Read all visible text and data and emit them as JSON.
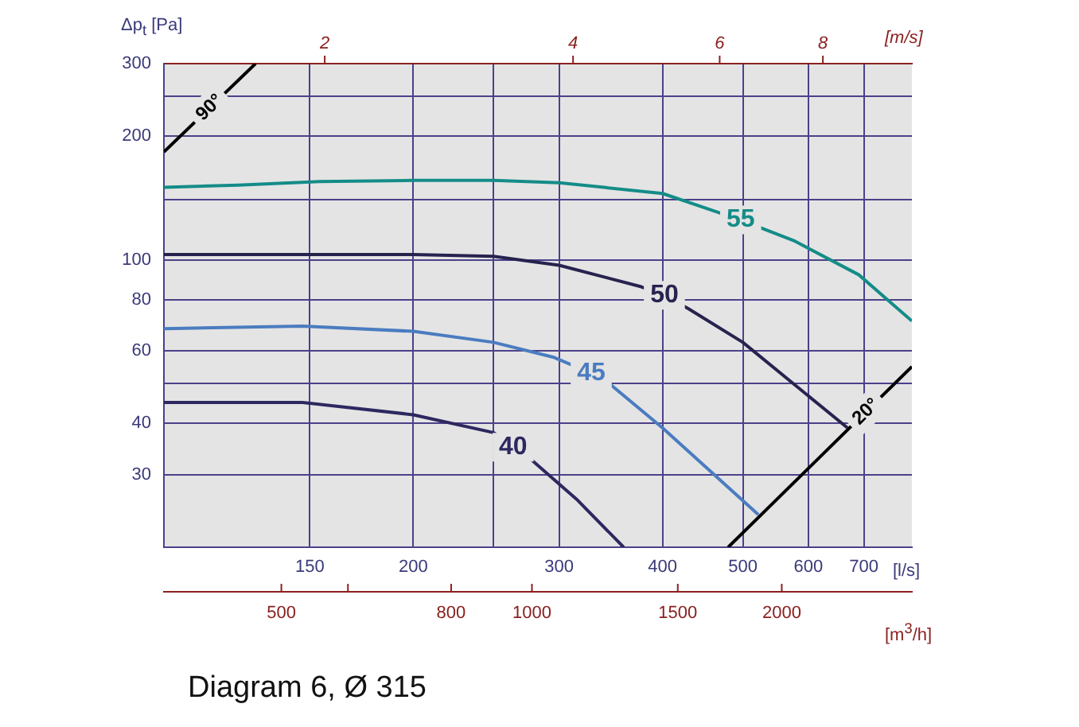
{
  "chart_data": {
    "type": "line",
    "log": "xy",
    "grid": true,
    "xlabel": "[l/s]",
    "ylabel": "Δp$_{t}$ [Pa]",
    "annotations": [
      "Diagram 6, Ø 315",
      "2",
      "4",
      "6",
      "8",
      "[m/s]",
      "500",
      "800",
      "1000",
      "1500",
      "2000",
      "[m$^{3}$/h]"
    ],
    "xlim": [
      100,
      800
    ],
    "xticks": [
      150,
      200,
      {
        "value": 250,
        "label": null
      },
      300,
      400,
      500,
      600,
      700
    ],
    "ylim": [
      20,
      300
    ],
    "yticks": [
      30,
      40,
      {
        "value": 50,
        "label": null
      },
      60,
      80,
      100,
      {
        "value": 140,
        "label": null
      },
      200,
      {
        "value": 250,
        "label": null
      },
      300
    ],
    "series": [
      {
        "name": "40",
        "color": "#2d2860",
        "x": [
          100,
          147,
          200,
          250,
          264,
          276,
          316,
          359
        ],
        "values": [
          45,
          45,
          42,
          38,
          35,
          33,
          26,
          20
        ]
      },
      {
        "name": "45",
        "color": "#4a7cc0",
        "x": [
          100,
          147,
          200,
          250,
          295,
          328,
          345,
          400,
          522
        ],
        "values": [
          68,
          69,
          67,
          63,
          58,
          53,
          50,
          39,
          24
        ]
      },
      {
        "name": "50",
        "color": "#27234f",
        "x": [
          100,
          200,
          250,
          300,
          377,
          402,
          430,
          500,
          669
        ],
        "values": [
          103,
          103,
          102,
          97,
          86,
          82,
          76,
          63,
          39
        ]
      },
      {
        "name": "55",
        "color": "#148c88",
        "x": [
          100,
          123,
          154,
          200,
          250,
          300,
          400,
          497,
          578,
          690,
          800
        ],
        "values": [
          150,
          152,
          155,
          156,
          156,
          154,
          145,
          125,
          111,
          92,
          71
        ]
      },
      {
        "name": "90°",
        "color": "#000000",
        "x": [
          100,
          129
        ],
        "values": [
          183,
          300
        ]
      },
      {
        "name": "20°",
        "color": "#000000",
        "x": [
          480,
          800
        ],
        "values": [
          20,
          55
        ]
      }
    ]
  }
}
